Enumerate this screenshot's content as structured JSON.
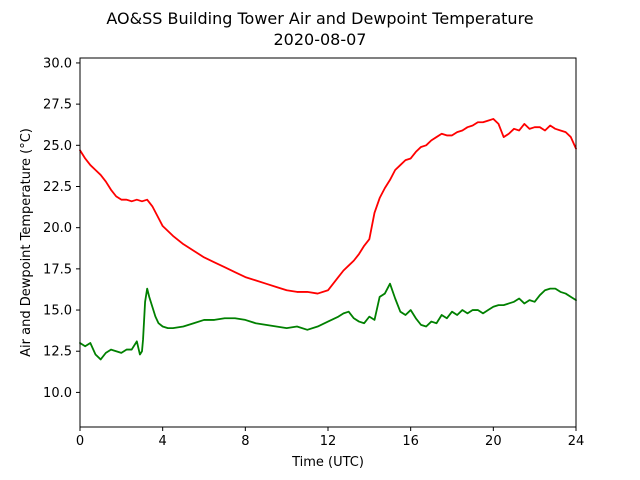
{
  "chart_data": {
    "type": "line",
    "title": "AO&SS Building Tower Air and Dewpoint Temperature",
    "subtitle": "2020-08-07",
    "xlabel": "Time (UTC)",
    "ylabel": "Air and Dewpoint Temperature (°C)",
    "xlim": [
      0,
      24
    ],
    "ylim": [
      7.9,
      30.3
    ],
    "grid": false,
    "x_ticks": [
      0,
      4,
      8,
      12,
      16,
      20,
      24
    ],
    "x_tick_labels": [
      "0",
      "4",
      "8",
      "12",
      "16",
      "20",
      "24"
    ],
    "y_ticks": [
      10.0,
      12.5,
      15.0,
      17.5,
      20.0,
      22.5,
      25.0,
      27.5,
      30.0
    ],
    "y_tick_labels": [
      "10.0",
      "12.5",
      "15.0",
      "17.5",
      "20.0",
      "22.5",
      "25.0",
      "27.5",
      "30.0"
    ],
    "series": [
      {
        "color": "#ff0000",
        "x": [
          0,
          0.25,
          0.5,
          0.75,
          1,
          1.25,
          1.5,
          1.75,
          2,
          2.25,
          2.5,
          2.75,
          3,
          3.25,
          3.5,
          3.75,
          4,
          4.5,
          5,
          5.5,
          6,
          6.5,
          7,
          7.5,
          8,
          8.5,
          9,
          9.5,
          10,
          10.5,
          11,
          11.5,
          12,
          12.25,
          12.5,
          12.75,
          13,
          13.25,
          13.5,
          13.75,
          14,
          14.25,
          14.5,
          14.75,
          15,
          15.25,
          15.5,
          15.75,
          16,
          16.25,
          16.5,
          16.75,
          17,
          17.25,
          17.5,
          17.75,
          18,
          18.25,
          18.5,
          18.75,
          19,
          19.25,
          19.5,
          19.75,
          20,
          20.25,
          20.5,
          20.75,
          21,
          21.25,
          21.5,
          21.75,
          22,
          22.25,
          22.5,
          22.75,
          23,
          23.25,
          23.5,
          23.75,
          24
        ],
        "values": [
          24.7,
          24.2,
          23.8,
          23.5,
          23.2,
          22.8,
          22.3,
          21.9,
          21.7,
          21.7,
          21.6,
          21.7,
          21.6,
          21.7,
          21.3,
          20.7,
          20.1,
          19.5,
          19.0,
          18.6,
          18.2,
          17.9,
          17.6,
          17.3,
          17.0,
          16.8,
          16.6,
          16.4,
          16.2,
          16.1,
          16.1,
          16.0,
          16.2,
          16.6,
          17.0,
          17.4,
          17.7,
          18.0,
          18.4,
          18.9,
          19.3,
          20.9,
          21.8,
          22.4,
          22.9,
          23.5,
          23.8,
          24.1,
          24.2,
          24.6,
          24.9,
          25.0,
          25.3,
          25.5,
          25.7,
          25.6,
          25.6,
          25.8,
          25.9,
          26.1,
          26.2,
          26.4,
          26.4,
          26.5,
          26.6,
          26.3,
          25.5,
          25.7,
          26.0,
          25.9,
          26.3,
          26.0,
          26.1,
          26.1,
          25.9,
          26.2,
          26.0,
          25.9,
          25.8,
          25.5,
          24.8
        ]
      },
      {
        "color": "#008000",
        "x": [
          0,
          0.25,
          0.5,
          0.75,
          1,
          1.25,
          1.5,
          1.75,
          2,
          2.25,
          2.5,
          2.75,
          2.9,
          3.0,
          3.05,
          3.15,
          3.25,
          3.35,
          3.5,
          3.65,
          3.8,
          4,
          4.25,
          4.5,
          5,
          5.5,
          6,
          6.5,
          7,
          7.5,
          8,
          8.5,
          9,
          9.5,
          10,
          10.5,
          11,
          11.5,
          12,
          12.5,
          12.75,
          13,
          13.25,
          13.5,
          13.75,
          14,
          14.25,
          14.5,
          14.75,
          15,
          15.25,
          15.5,
          15.75,
          16,
          16.25,
          16.5,
          16.75,
          17,
          17.25,
          17.5,
          17.75,
          18,
          18.25,
          18.5,
          18.75,
          19,
          19.25,
          19.5,
          19.75,
          20,
          20.25,
          20.5,
          20.75,
          21,
          21.25,
          21.5,
          21.75,
          22,
          22.25,
          22.5,
          22.75,
          23,
          23.25,
          23.5,
          23.75,
          24
        ],
        "values": [
          13.0,
          12.8,
          13.0,
          12.3,
          12.0,
          12.4,
          12.6,
          12.5,
          12.4,
          12.6,
          12.6,
          13.1,
          12.3,
          12.5,
          13.2,
          15.5,
          16.3,
          15.8,
          15.2,
          14.6,
          14.2,
          14.0,
          13.9,
          13.9,
          14.0,
          14.2,
          14.4,
          14.4,
          14.5,
          14.5,
          14.4,
          14.2,
          14.1,
          14.0,
          13.9,
          14.0,
          13.8,
          14.0,
          14.3,
          14.6,
          14.8,
          14.9,
          14.5,
          14.3,
          14.2,
          14.6,
          14.4,
          15.8,
          16.0,
          16.6,
          15.7,
          14.9,
          14.7,
          15.0,
          14.5,
          14.1,
          14.0,
          14.3,
          14.2,
          14.7,
          14.5,
          14.9,
          14.7,
          15.0,
          14.8,
          15.0,
          15.0,
          14.8,
          15.0,
          15.2,
          15.3,
          15.3,
          15.4,
          15.5,
          15.7,
          15.4,
          15.6,
          15.5,
          15.9,
          16.2,
          16.3,
          16.3,
          16.1,
          16.0,
          15.8,
          15.6
        ]
      }
    ]
  }
}
